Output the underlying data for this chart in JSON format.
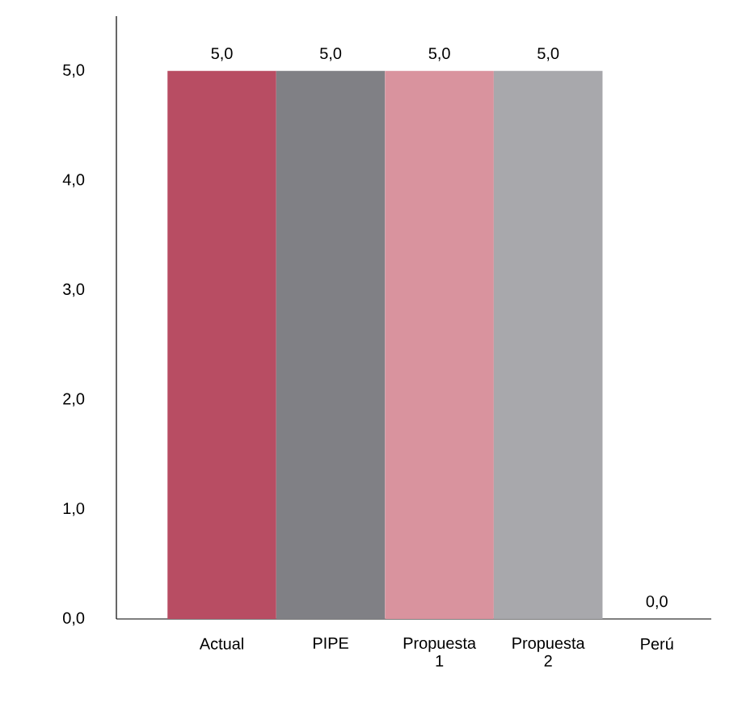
{
  "chart_data": {
    "type": "bar",
    "categories": [
      "Actual",
      "PIPE",
      "Propuesta 1",
      "Propuesta 2",
      "Perú"
    ],
    "values": [
      5.0,
      5.0,
      5.0,
      5.0,
      0.0
    ],
    "colors": [
      "#b84d63",
      "#808085",
      "#d9939e",
      "#a8a8ac",
      "#a8a8ac"
    ],
    "value_labels": [
      "5,0",
      "5,0",
      "5,0",
      "5,0",
      "0,0"
    ],
    "ylim": [
      0,
      5.5
    ],
    "yticks": [
      {
        "value": 0,
        "label": "0,0"
      },
      {
        "value": 1,
        "label": "1,0"
      },
      {
        "value": 2,
        "label": "2,0"
      },
      {
        "value": 3,
        "label": "3,0"
      },
      {
        "value": 4,
        "label": "4,0"
      },
      {
        "value": 5,
        "label": "5,0"
      }
    ]
  }
}
